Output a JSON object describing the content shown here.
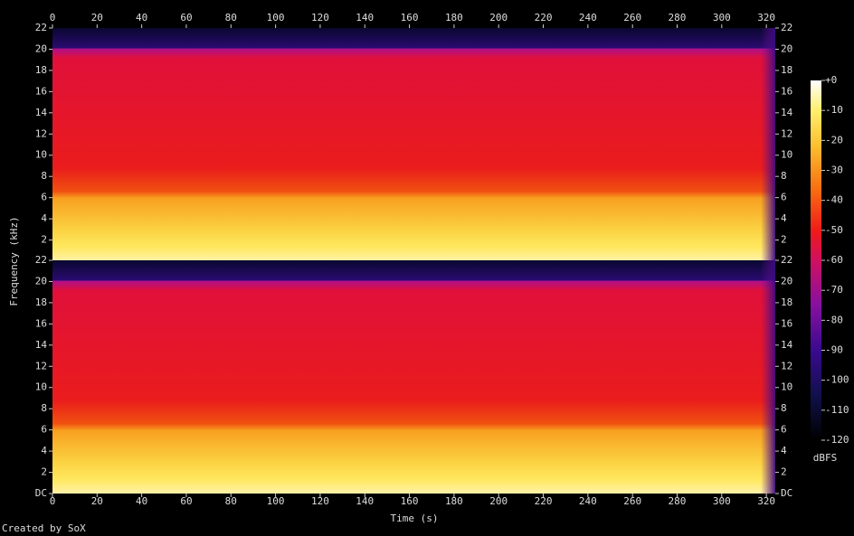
{
  "chart_data": {
    "type": "spectrogram",
    "xlabel": "Time (s)",
    "ylabel": "Frequency (kHz)",
    "xlim": [
      0,
      324
    ],
    "xticks": [
      0,
      20,
      40,
      60,
      80,
      100,
      120,
      140,
      160,
      180,
      200,
      220,
      240,
      260,
      280,
      300,
      320
    ],
    "panels": [
      {
        "ylim": [
          0,
          22
        ],
        "yticks": [
          22,
          20,
          18,
          16,
          14,
          12,
          10,
          8,
          6,
          4,
          2
        ]
      },
      {
        "ylim": [
          0,
          22
        ],
        "yticks": [
          22,
          20,
          18,
          16,
          14,
          12,
          10,
          8,
          6,
          4,
          2,
          {
            "value": 0,
            "label": "DC"
          }
        ]
      }
    ],
    "zlim": [
      -120,
      0
    ],
    "zticks": [
      {
        "value": 0,
        "label": "+0"
      },
      -10,
      -20,
      -30,
      -40,
      -50,
      -60,
      -70,
      -80,
      -90,
      -100,
      -110,
      -120
    ],
    "zlabel": "dBFS",
    "credit": "Created by SoX"
  }
}
